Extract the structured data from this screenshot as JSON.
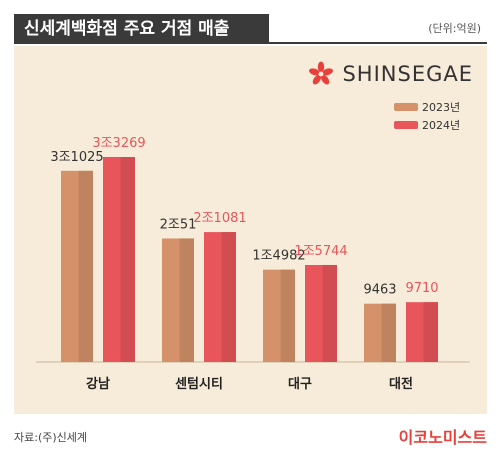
{
  "header": {
    "title": "신세계백화점 주요 거점 매출",
    "unit": "(단위:억원)"
  },
  "logo": {
    "text": "SHINSEGAE",
    "icon": "flower-icon",
    "color": "#e8403a"
  },
  "chart_data": {
    "type": "bar",
    "categories": [
      "강남",
      "센텀시티",
      "대구",
      "대전"
    ],
    "series": [
      {
        "name": "2023년",
        "values": [
          31025,
          20051,
          14982,
          9463
        ],
        "labels": [
          "3조1025",
          "2조51",
          "1조4982",
          "9463"
        ],
        "color": "#d4916a",
        "label_color": "#333333"
      },
      {
        "name": "2024년",
        "values": [
          33269,
          21081,
          15744,
          9710
        ],
        "labels": [
          "3조3269",
          "2조1081",
          "1조5744",
          "9710"
        ],
        "color": "#e8555a",
        "label_color": "#e8555a"
      }
    ],
    "legend_position": "top-right",
    "grid": false
  },
  "footer": {
    "source": "자료:(주)신세계",
    "brand": "이코노미스트"
  }
}
